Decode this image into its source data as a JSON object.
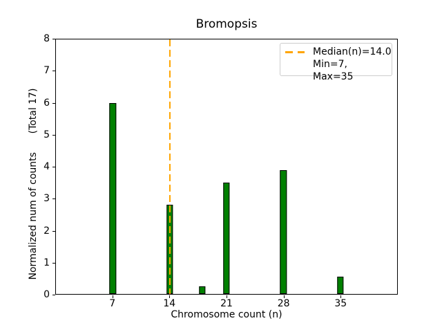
{
  "chart_data": {
    "type": "bar",
    "title": "Bromopsis",
    "xlabel": "Chromosome count (n)",
    "ylabel": "Normalized num of counts      (Total 17)",
    "x": [
      7,
      14,
      18,
      21,
      28,
      35
    ],
    "values": [
      6.0,
      2.8,
      0.25,
      3.5,
      3.9,
      0.55
    ],
    "xticks": [
      "7",
      "14",
      "21",
      "28",
      "35"
    ],
    "xtick_values": [
      7,
      14,
      21,
      28,
      35
    ],
    "yticks": [
      "0",
      "1",
      "2",
      "3",
      "4",
      "5",
      "6",
      "7",
      "8"
    ],
    "ytick_values": [
      0,
      1,
      2,
      3,
      4,
      5,
      6,
      7,
      8
    ],
    "xlim": [
      0,
      42
    ],
    "ylim": [
      0,
      8
    ],
    "bar_width_units": 0.8,
    "bar_color": "#008000",
    "bar_edge_color": "#000000",
    "grid": false,
    "median_line": {
      "x": 14.0,
      "color": "#FFA500",
      "style": "dashed",
      "line_width": 2
    },
    "legend": {
      "position": "top-right",
      "entries": [
        {
          "marker": "dashed-line",
          "marker_color": "#FFA500",
          "label": "Median(n)=14.0"
        },
        {
          "marker": "none",
          "marker_color": "",
          "label": "Min=7, Max=35"
        }
      ]
    }
  }
}
